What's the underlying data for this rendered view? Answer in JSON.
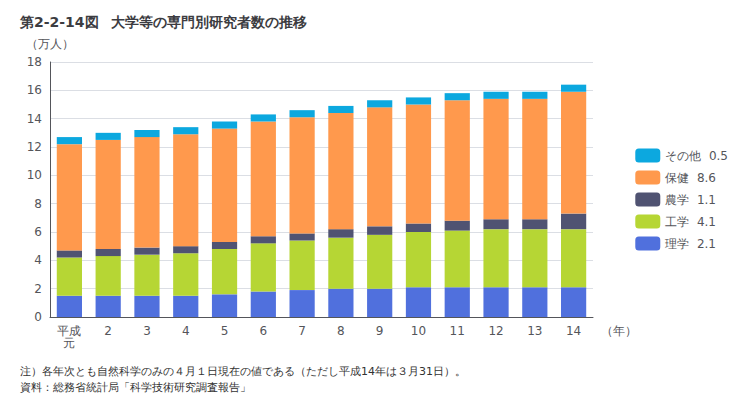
{
  "chart_data": {
    "type": "bar",
    "title": "第2-2-14図",
    "subtitle": "大学等の専門別研究者数の推移",
    "ylabel": "（万人）",
    "xlabel": "（年）",
    "categories": [
      "平成\n元",
      "2",
      "3",
      "4",
      "5",
      "6",
      "7",
      "8",
      "9",
      "10",
      "11",
      "12",
      "13",
      "14"
    ],
    "series": [
      {
        "name": "理学  2.1",
        "values": [
          1.5,
          1.5,
          1.5,
          1.5,
          1.6,
          1.8,
          1.9,
          2.0,
          2.0,
          2.1,
          2.1,
          2.1,
          2.1,
          2.1
        ]
      },
      {
        "name": "工学  4.1",
        "values": [
          2.7,
          2.8,
          2.9,
          3.0,
          3.2,
          3.4,
          3.5,
          3.6,
          3.8,
          3.9,
          4.0,
          4.1,
          4.1,
          4.1
        ]
      },
      {
        "name": "農学  1.1",
        "values": [
          0.5,
          0.5,
          0.5,
          0.5,
          0.5,
          0.5,
          0.5,
          0.6,
          0.6,
          0.6,
          0.7,
          0.7,
          0.7,
          1.1
        ]
      },
      {
        "name": "保健  8.6",
        "values": [
          7.5,
          7.7,
          7.8,
          7.9,
          8.0,
          8.1,
          8.2,
          8.2,
          8.4,
          8.4,
          8.5,
          8.5,
          8.5,
          8.6
        ]
      },
      {
        "name": "その他  0.5",
        "values": [
          0.5,
          0.5,
          0.5,
          0.5,
          0.5,
          0.5,
          0.5,
          0.5,
          0.5,
          0.5,
          0.5,
          0.5,
          0.5,
          0.5
        ]
      }
    ],
    "stacked": true,
    "ylim": [
      0,
      18
    ],
    "yticks": [
      0,
      2,
      4,
      6,
      8,
      10,
      12,
      14,
      16,
      18
    ],
    "grid": true,
    "legend": "right",
    "annotations": [
      "注）各年次とも自然科学のみの４月１日現在の値である（ただし平成14年は３月31日）。",
      "資料：総務省統計局「科学技術研究調査報告」"
    ]
  }
}
